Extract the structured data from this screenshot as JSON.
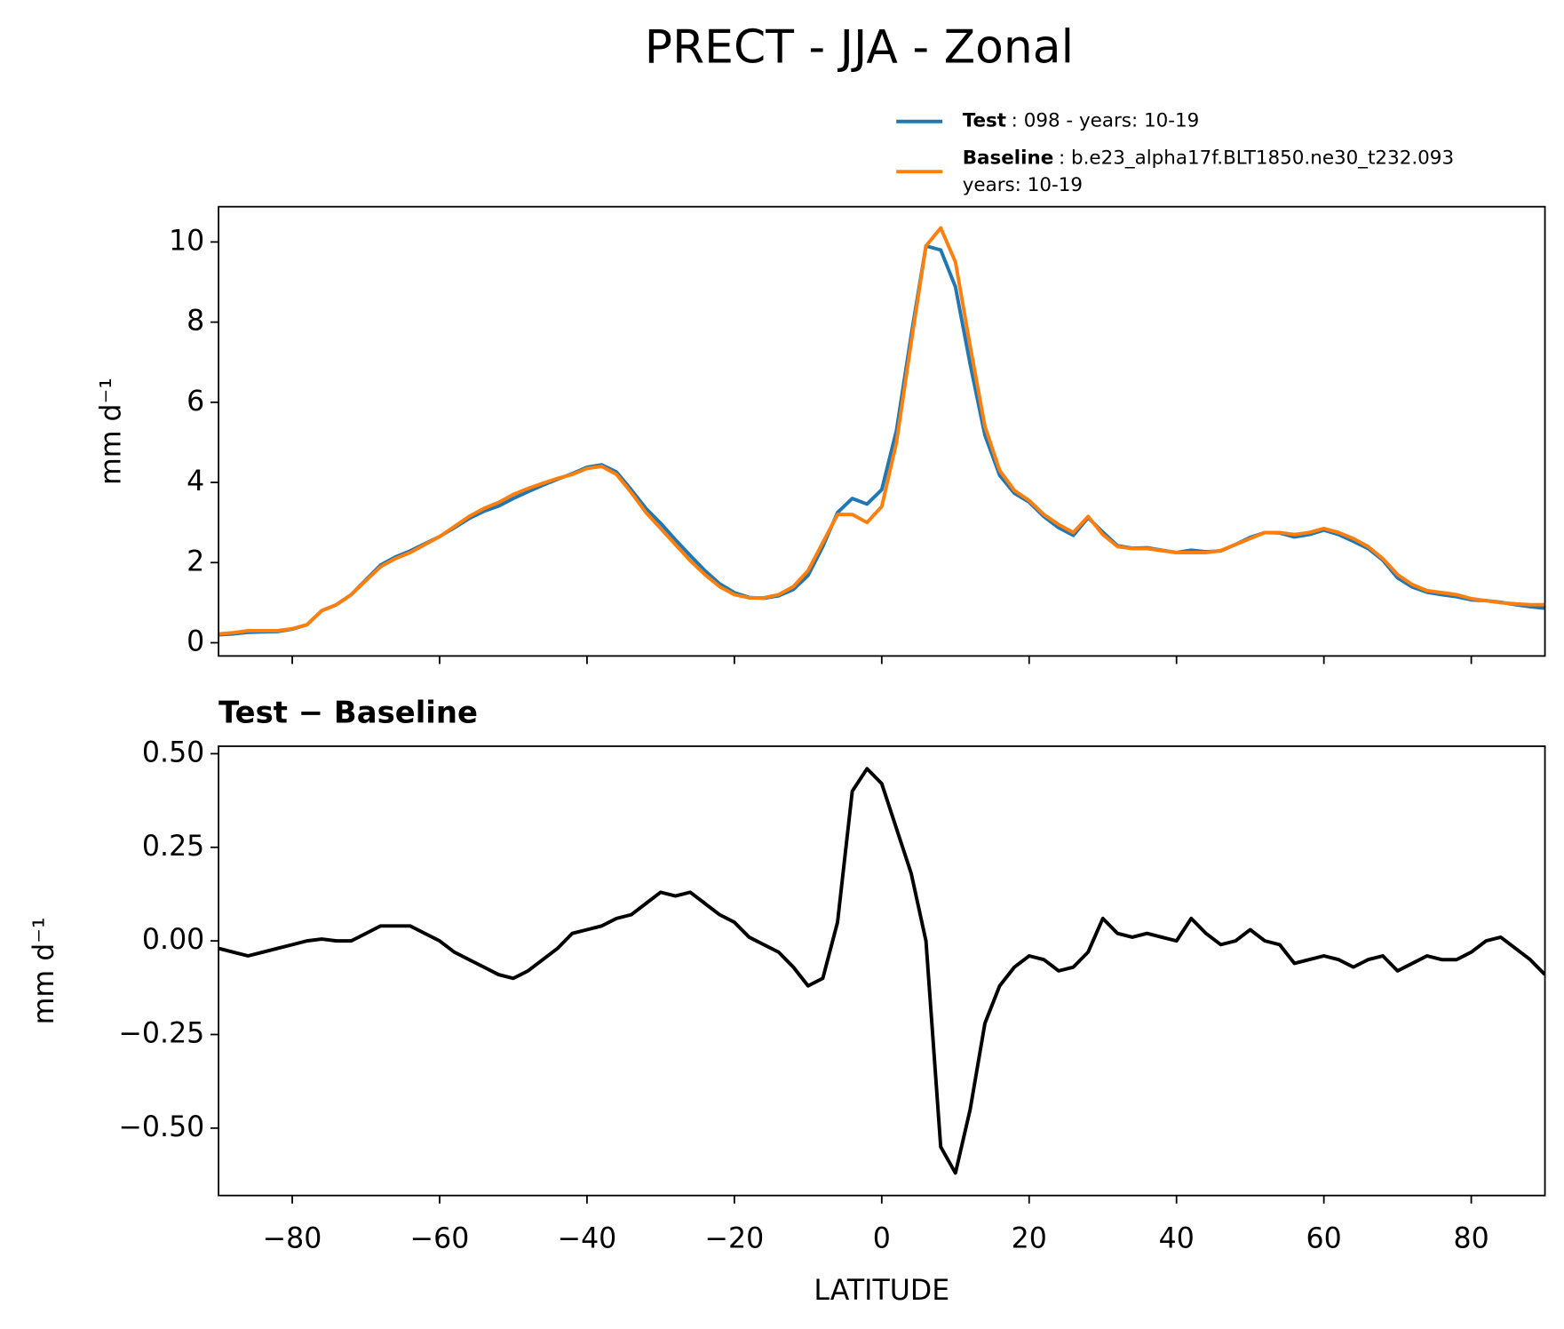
{
  "chart_data": [
    {
      "type": "line",
      "title": "PRECT - JJA - Zonal",
      "ylabel": "mm d⁻¹",
      "x": [
        -90,
        -88,
        -86,
        -84,
        -82,
        -80,
        -78,
        -76,
        -74,
        -72,
        -70,
        -68,
        -66,
        -64,
        -62,
        -60,
        -58,
        -56,
        -54,
        -52,
        -50,
        -48,
        -46,
        -44,
        -42,
        -40,
        -38,
        -36,
        -34,
        -32,
        -30,
        -28,
        -26,
        -24,
        -22,
        -20,
        -18,
        -16,
        -14,
        -12,
        -10,
        -8,
        -6,
        -4,
        -2,
        0,
        2,
        4,
        6,
        8,
        10,
        12,
        14,
        16,
        18,
        20,
        22,
        24,
        26,
        28,
        30,
        32,
        34,
        36,
        38,
        40,
        42,
        44,
        46,
        48,
        50,
        52,
        54,
        56,
        58,
        60,
        62,
        64,
        66,
        68,
        70,
        72,
        74,
        76,
        78,
        80,
        82,
        84,
        86,
        88,
        90
      ],
      "series": [
        {
          "name": "Test",
          "description": [
            ": 098 - years: 10-19"
          ],
          "color": "#1f77b4",
          "values": [
            0.2,
            0.22,
            0.26,
            0.27,
            0.28,
            0.34,
            0.45,
            0.8,
            0.95,
            1.2,
            1.57,
            1.94,
            2.14,
            2.29,
            2.47,
            2.65,
            2.87,
            3.1,
            3.28,
            3.41,
            3.6,
            3.77,
            3.93,
            4.08,
            4.22,
            4.38,
            4.44,
            4.26,
            3.82,
            3.35,
            2.98,
            2.57,
            2.18,
            1.8,
            1.47,
            1.25,
            1.13,
            1.11,
            1.17,
            1.33,
            1.68,
            2.4,
            3.25,
            3.6,
            3.46,
            3.82,
            5.3,
            7.68,
            9.9,
            9.8,
            8.88,
            6.95,
            5.18,
            4.18,
            3.73,
            3.51,
            3.15,
            2.87,
            2.68,
            3.12,
            2.76,
            2.42,
            2.36,
            2.37,
            2.31,
            2.25,
            2.31,
            2.27,
            2.29,
            2.45,
            2.63,
            2.75,
            2.74,
            2.64,
            2.7,
            2.81,
            2.7,
            2.53,
            2.35,
            2.06,
            1.62,
            1.39,
            1.26,
            1.2,
            1.15,
            1.07,
            1.05,
            1.01,
            0.95,
            0.9,
            0.86
          ]
        },
        {
          "name": "Baseline",
          "description": [
            ": b.e23_alpha17f.BLT1850.ne30_t232.093",
            "years: 10-19"
          ],
          "color": "#ff7f0e",
          "values": [
            0.22,
            0.25,
            0.3,
            0.3,
            0.3,
            0.35,
            0.45,
            0.8,
            0.95,
            1.2,
            1.55,
            1.9,
            2.1,
            2.25,
            2.45,
            2.65,
            2.9,
            3.15,
            3.35,
            3.5,
            3.7,
            3.85,
            3.98,
            4.1,
            4.2,
            4.35,
            4.4,
            4.2,
            3.75,
            3.25,
            2.85,
            2.45,
            2.05,
            1.7,
            1.4,
            1.2,
            1.12,
            1.12,
            1.2,
            1.4,
            1.8,
            2.5,
            3.2,
            3.2,
            3.0,
            3.4,
            5.0,
            7.5,
            9.9,
            10.35,
            9.5,
            7.4,
            5.4,
            4.3,
            3.8,
            3.55,
            3.2,
            2.95,
            2.75,
            3.15,
            2.7,
            2.4,
            2.35,
            2.35,
            2.3,
            2.25,
            2.25,
            2.25,
            2.3,
            2.45,
            2.6,
            2.75,
            2.75,
            2.7,
            2.75,
            2.85,
            2.75,
            2.6,
            2.4,
            2.1,
            1.7,
            1.45,
            1.3,
            1.25,
            1.2,
            1.1,
            1.05,
            1.0,
            0.97,
            0.95,
            0.95
          ]
        }
      ],
      "xlim": [
        -90,
        90
      ],
      "xticks": [
        -80,
        -60,
        -40,
        -20,
        0,
        20,
        40,
        60,
        80
      ],
      "ylim": [
        -0.33,
        10.88
      ],
      "yticks": [
        0,
        2,
        4,
        6,
        8,
        10
      ]
    },
    {
      "type": "line",
      "title": "Test − Baseline",
      "ylabel": "mm d⁻¹",
      "xlabel": "LATITUDE",
      "color": "#000000",
      "x": [
        -90,
        -88,
        -86,
        -84,
        -82,
        -80,
        -78,
        -76,
        -74,
        -72,
        -70,
        -68,
        -66,
        -64,
        -62,
        -60,
        -58,
        -56,
        -54,
        -52,
        -50,
        -48,
        -46,
        -44,
        -42,
        -40,
        -38,
        -36,
        -34,
        -32,
        -30,
        -28,
        -26,
        -24,
        -22,
        -20,
        -18,
        -16,
        -14,
        -12,
        -10,
        -8,
        -6,
        -4,
        -2,
        0,
        2,
        4,
        6,
        8,
        10,
        12,
        14,
        16,
        18,
        20,
        22,
        24,
        26,
        28,
        30,
        32,
        34,
        36,
        38,
        40,
        42,
        44,
        46,
        48,
        50,
        52,
        54,
        56,
        58,
        60,
        62,
        64,
        66,
        68,
        70,
        72,
        74,
        76,
        78,
        80,
        82,
        84,
        86,
        88,
        90
      ],
      "values": [
        -0.02,
        -0.03,
        -0.04,
        -0.03,
        -0.02,
        -0.01,
        0,
        0.005,
        0,
        0,
        0.02,
        0.04,
        0.04,
        0.04,
        0.02,
        0,
        -0.03,
        -0.05,
        -0.07,
        -0.09,
        -0.1,
        -0.08,
        -0.05,
        -0.02,
        0.02,
        0.03,
        0.04,
        0.06,
        0.07,
        0.1,
        0.13,
        0.12,
        0.13,
        0.1,
        0.07,
        0.05,
        0.01,
        -0.01,
        -0.03,
        -0.07,
        -0.12,
        -0.1,
        0.05,
        0.4,
        0.46,
        0.42,
        0.3,
        0.18,
        0.0,
        -0.55,
        -0.62,
        -0.45,
        -0.22,
        -0.12,
        -0.07,
        -0.04,
        -0.05,
        -0.08,
        -0.07,
        -0.03,
        0.06,
        0.02,
        0.01,
        0.02,
        0.01,
        0.0,
        0.06,
        0.02,
        -0.01,
        0.0,
        0.03,
        0.0,
        -0.01,
        -0.06,
        -0.05,
        -0.04,
        -0.05,
        -0.07,
        -0.05,
        -0.04,
        -0.08,
        -0.06,
        -0.04,
        -0.05,
        -0.05,
        -0.03,
        0.0,
        0.01,
        -0.02,
        -0.05,
        -0.09
      ],
      "xlim": [
        -90,
        90
      ],
      "xticks": [
        {
          "value": -80,
          "label": "−80"
        },
        {
          "value": -60,
          "label": "−60"
        },
        {
          "value": -40,
          "label": "−40"
        },
        {
          "value": -20,
          "label": "−20"
        },
        0,
        20,
        40,
        60,
        80
      ],
      "ylim": [
        -0.68,
        0.52
      ],
      "yticks": [
        {
          "value": 0.5,
          "label": "0.50"
        },
        {
          "value": 0.25,
          "label": "0.25"
        },
        {
          "value": 0,
          "label": "0.00"
        },
        {
          "value": -0.25,
          "label": "−0.25"
        },
        {
          "value": -0.5,
          "label": "−0.50"
        }
      ]
    }
  ]
}
